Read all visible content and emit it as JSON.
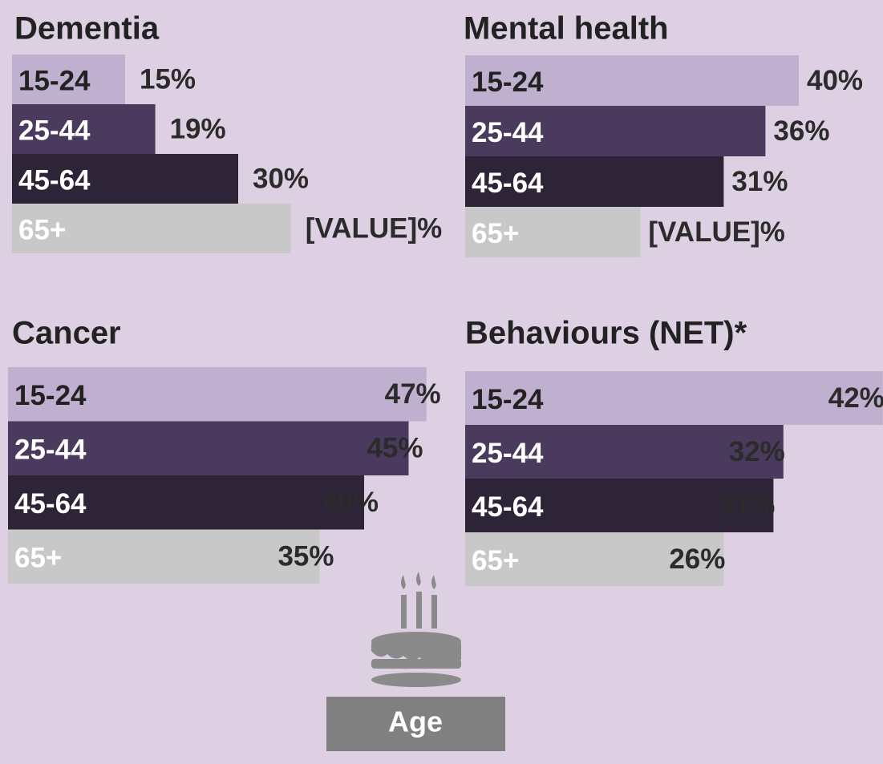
{
  "chart_data": [
    {
      "type": "bar",
      "title": "Dementia",
      "categories": [
        "15-24",
        "25-44",
        "45-64",
        "65+"
      ],
      "values": [
        15,
        19,
        30,
        37
      ],
      "value_labels": [
        "15%",
        "19%",
        "30%",
        "[VALUE]%"
      ],
      "colors": [
        "#bfb0cf",
        "#4a3a5e",
        "#2e2438",
        "#c8c8c8"
      ],
      "xlim": [
        0,
        50
      ]
    },
    {
      "type": "bar",
      "title": "Mental health",
      "categories": [
        "15-24",
        "25-44",
        "45-64",
        "65+"
      ],
      "values": [
        40,
        36,
        31,
        21
      ],
      "value_labels": [
        "40%",
        "36%",
        "31%",
        "[VALUE]%"
      ],
      "colors": [
        "#bfb0cf",
        "#4a3a5e",
        "#2e2438",
        "#c8c8c8"
      ],
      "xlim": [
        0,
        50
      ]
    },
    {
      "type": "bar",
      "title": "Cancer",
      "categories": [
        "15-24",
        "25-44",
        "45-64",
        "65+"
      ],
      "values": [
        47,
        45,
        40,
        35
      ],
      "value_labels": [
        "47%",
        "45%",
        "40%",
        "35%"
      ],
      "colors": [
        "#bfb0cf",
        "#4a3a5e",
        "#2e2438",
        "#c8c8c8"
      ],
      "xlim": [
        0,
        50
      ]
    },
    {
      "type": "bar",
      "title": "Behaviours (NET)*",
      "categories": [
        "15-24",
        "25-44",
        "45-64",
        "65+"
      ],
      "values": [
        42,
        32,
        31,
        26
      ],
      "value_labels": [
        "42%",
        "32%",
        "31%",
        "26%"
      ],
      "colors": [
        "#bfb0cf",
        "#4a3a5e",
        "#2e2438",
        "#c8c8c8"
      ],
      "xlim": [
        0,
        50
      ]
    }
  ],
  "label": "Age"
}
